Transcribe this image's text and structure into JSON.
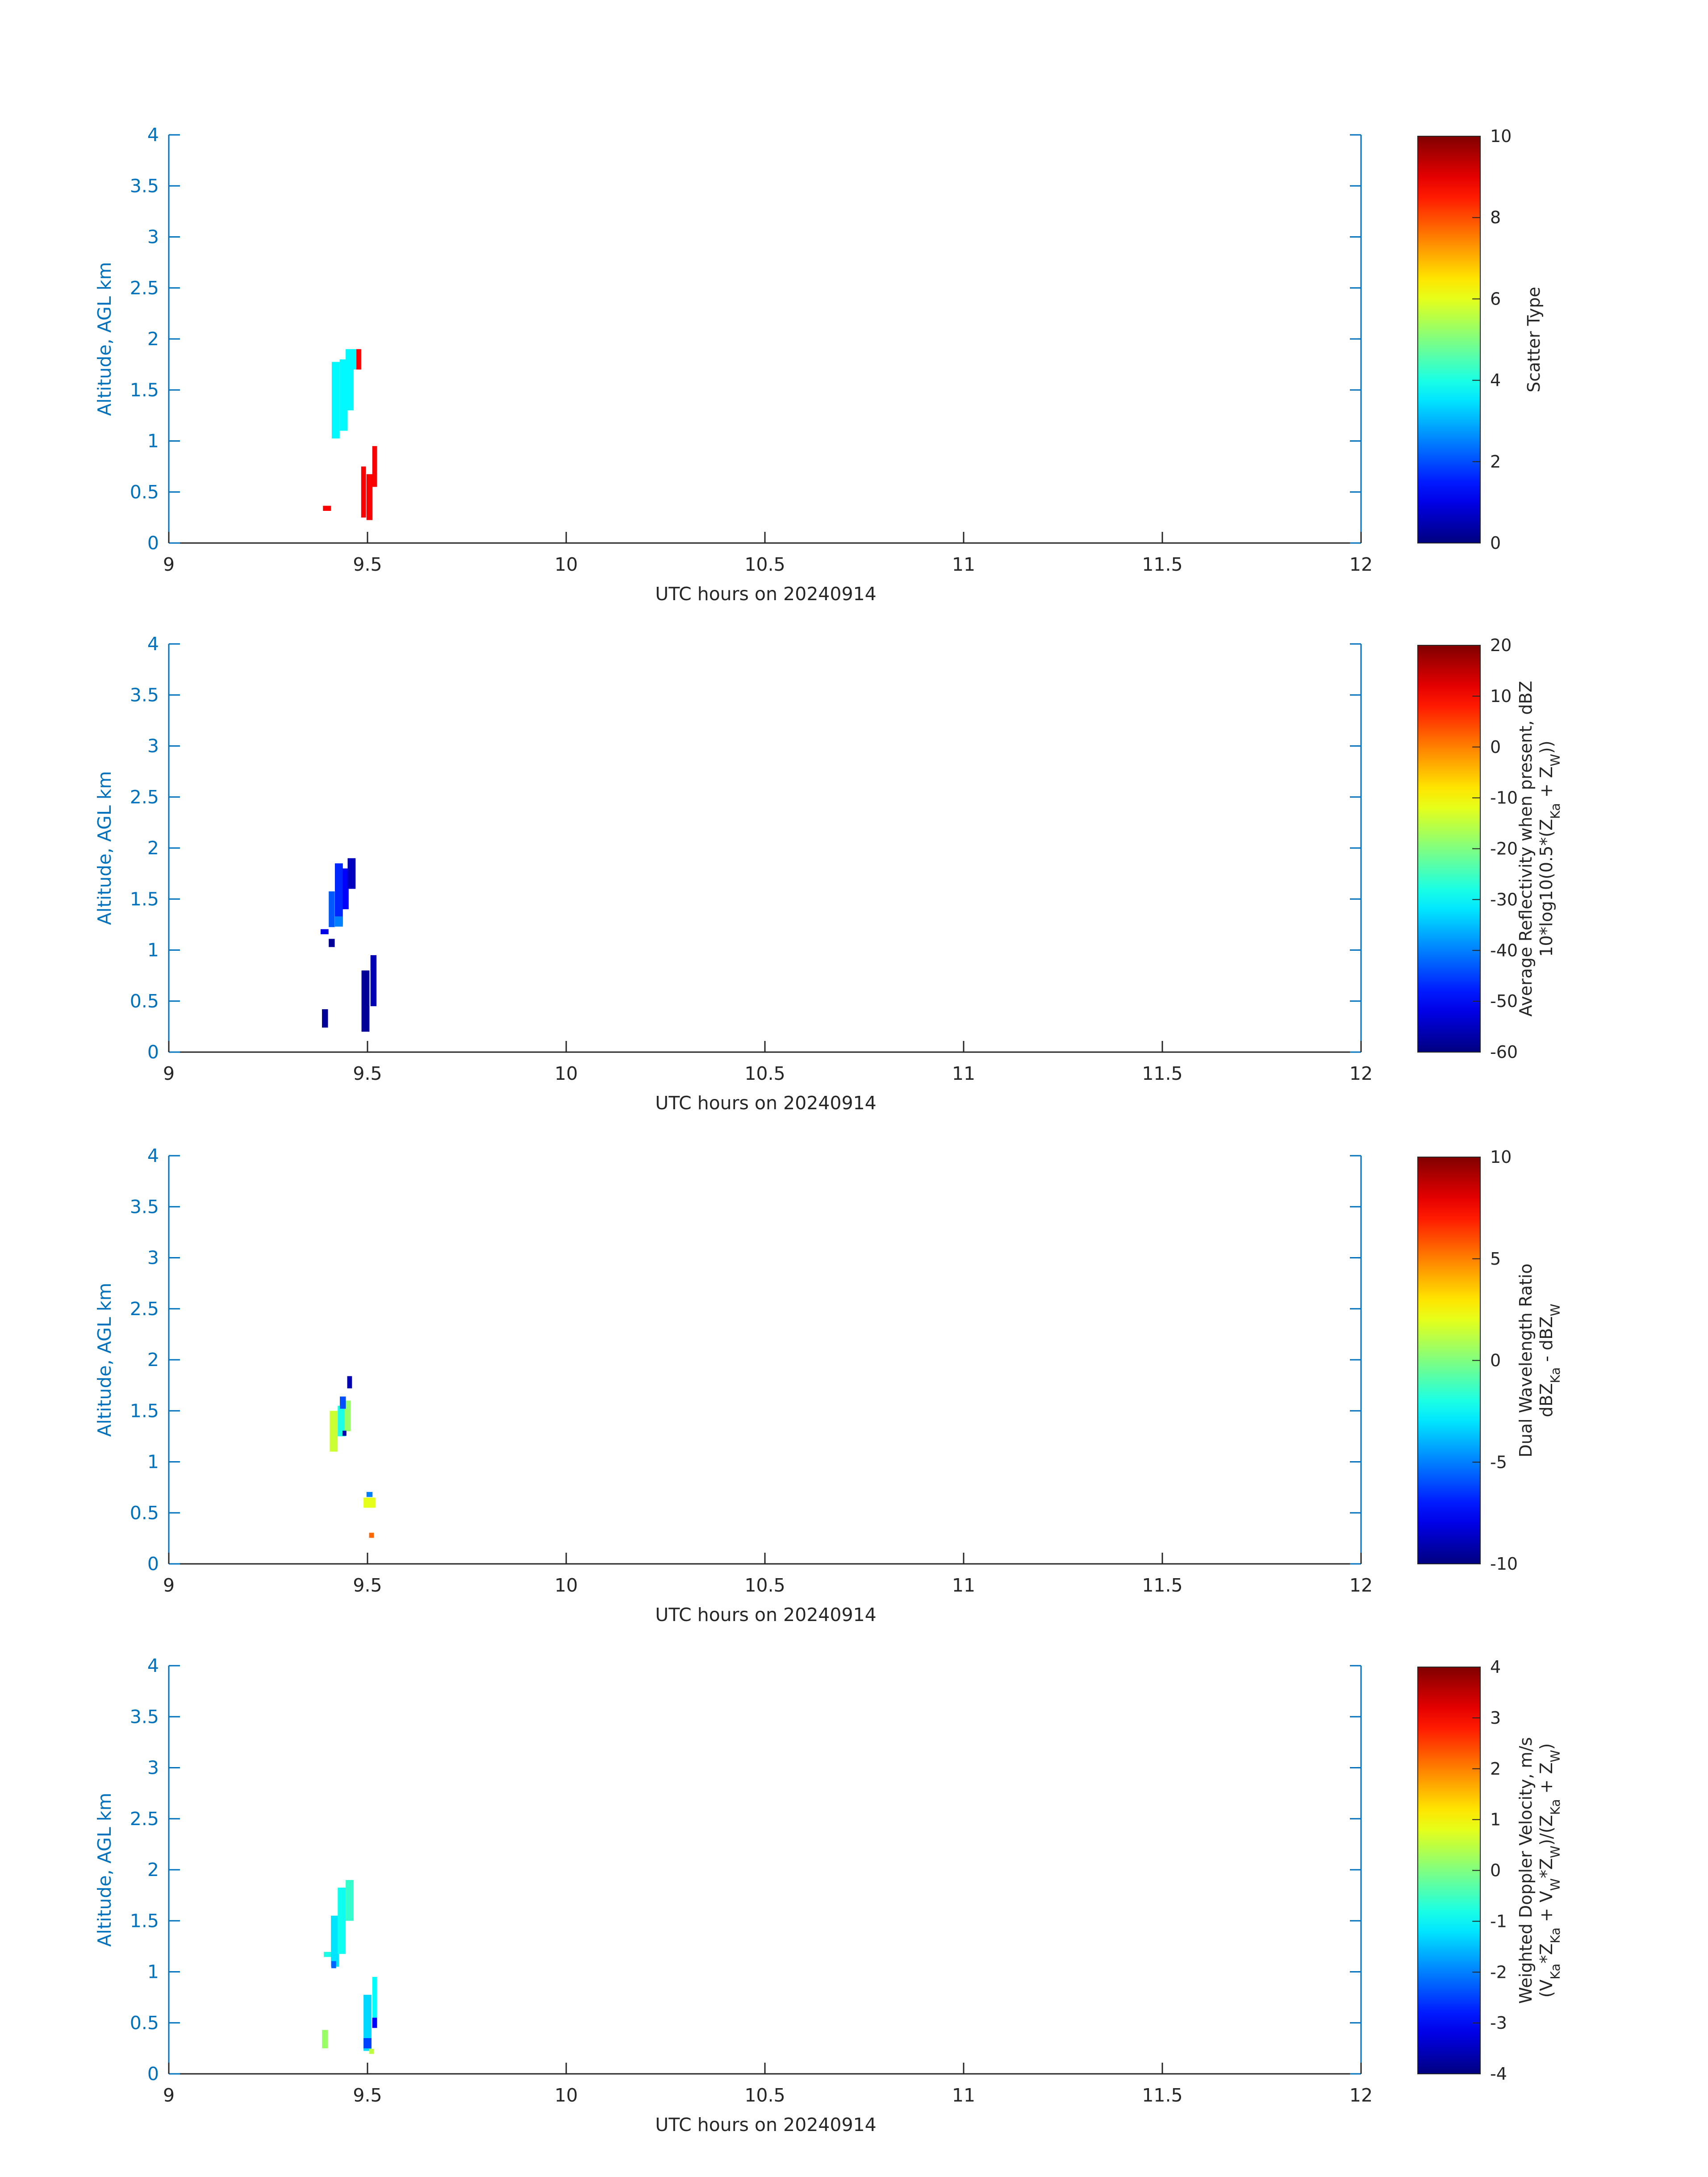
{
  "figure": {
    "x_ticks": [
      9,
      9.5,
      10,
      10.5,
      11,
      11.5,
      12
    ],
    "y_ticks": [
      0,
      0.5,
      1,
      1.5,
      2,
      2.5,
      3,
      3.5,
      4
    ],
    "colors": {
      "axis_text": "#0072BD",
      "text": "#262626",
      "axis_line": "#0072BD",
      "colormap": "jet"
    }
  },
  "chart_data": [
    {
      "type": "heatmap",
      "xlabel": "UTC hours on 20240914",
      "ylabel": "Altitude, AGL km",
      "xlim": [
        9,
        12
      ],
      "ylim": [
        0,
        4
      ],
      "colorbar": {
        "label_lines": [
          [
            "Scatter Type"
          ]
        ],
        "clim": [
          0,
          10
        ],
        "ticks": [
          0,
          2,
          4,
          6,
          8,
          10
        ]
      },
      "cells": [
        {
          "x": 9.42,
          "y": 1.4,
          "w": 0.02,
          "h": 0.75,
          "v": 3.7
        },
        {
          "x": 9.44,
          "y": 1.45,
          "w": 0.02,
          "h": 0.7,
          "v": 3.7
        },
        {
          "x": 9.455,
          "y": 1.6,
          "w": 0.02,
          "h": 0.6,
          "v": 3.7
        },
        {
          "x": 9.468,
          "y": 1.8,
          "w": 0.01,
          "h": 0.2,
          "v": 3.7
        },
        {
          "x": 9.478,
          "y": 1.8,
          "w": 0.012,
          "h": 0.2,
          "v": 8.8
        },
        {
          "x": 9.398,
          "y": 0.34,
          "w": 0.02,
          "h": 0.05,
          "v": 8.8
        },
        {
          "x": 9.49,
          "y": 0.5,
          "w": 0.012,
          "h": 0.5,
          "v": 8.8
        },
        {
          "x": 9.505,
          "y": 0.45,
          "w": 0.015,
          "h": 0.45,
          "v": 8.8
        },
        {
          "x": 9.518,
          "y": 0.75,
          "w": 0.012,
          "h": 0.4,
          "v": 8.8
        }
      ]
    },
    {
      "type": "heatmap",
      "xlabel": "UTC hours on 20240914",
      "ylabel": "Altitude, AGL km",
      "xlim": [
        9,
        12
      ],
      "ylim": [
        0,
        4
      ],
      "colorbar": {
        "label_lines": [
          [
            "Average Reflectivity when present, dBZ"
          ],
          [
            "10*log10(0.5*(Z",
            {
              "sub": "Ka"
            },
            " + Z",
            {
              "sub": "W"
            },
            "))"
          ]
        ],
        "clim": [
          -60,
          20
        ],
        "ticks": [
          -60,
          -50,
          -40,
          -30,
          -20,
          -10,
          0,
          10,
          20
        ]
      },
      "cells": [
        {
          "x": 9.392,
          "y": 1.18,
          "w": 0.02,
          "h": 0.05,
          "v": -52
        },
        {
          "x": 9.41,
          "y": 1.4,
          "w": 0.015,
          "h": 0.35,
          "v": -43
        },
        {
          "x": 9.41,
          "y": 1.07,
          "w": 0.015,
          "h": 0.08,
          "v": -58
        },
        {
          "x": 9.428,
          "y": 1.55,
          "w": 0.02,
          "h": 0.6,
          "v": -47
        },
        {
          "x": 9.428,
          "y": 1.28,
          "w": 0.02,
          "h": 0.1,
          "v": -40
        },
        {
          "x": 9.445,
          "y": 1.6,
          "w": 0.015,
          "h": 0.4,
          "v": -50
        },
        {
          "x": 9.46,
          "y": 1.75,
          "w": 0.02,
          "h": 0.3,
          "v": -55
        },
        {
          "x": 9.393,
          "y": 0.33,
          "w": 0.015,
          "h": 0.18,
          "v": -58
        },
        {
          "x": 9.495,
          "y": 0.5,
          "w": 0.02,
          "h": 0.6,
          "v": -58
        },
        {
          "x": 9.515,
          "y": 0.7,
          "w": 0.015,
          "h": 0.5,
          "v": -56
        }
      ]
    },
    {
      "type": "heatmap",
      "xlabel": "UTC hours on 20240914",
      "ylabel": "Altitude, AGL km",
      "xlim": [
        9,
        12
      ],
      "ylim": [
        0,
        4
      ],
      "colorbar": {
        "label_lines": [
          [
            "Dual Wavelength Ratio"
          ],
          [
            "dBZ",
            {
              "sub": "Ka"
            },
            " - dBZ",
            {
              "sub": "W"
            }
          ]
        ],
        "clim": [
          -10,
          10
        ],
        "ticks": [
          -10,
          -5,
          0,
          5,
          10
        ]
      },
      "cells": [
        {
          "x": 9.415,
          "y": 1.3,
          "w": 0.02,
          "h": 0.4,
          "v": 1.5
        },
        {
          "x": 9.435,
          "y": 1.4,
          "w": 0.02,
          "h": 0.3,
          "v": -2
        },
        {
          "x": 9.45,
          "y": 1.45,
          "w": 0.015,
          "h": 0.3,
          "v": 0.5
        },
        {
          "x": 9.438,
          "y": 1.58,
          "w": 0.015,
          "h": 0.12,
          "v": -6
        },
        {
          "x": 9.455,
          "y": 1.78,
          "w": 0.012,
          "h": 0.12,
          "v": -9
        },
        {
          "x": 9.442,
          "y": 1.28,
          "w": 0.01,
          "h": 0.05,
          "v": -9
        },
        {
          "x": 9.505,
          "y": 0.68,
          "w": 0.015,
          "h": 0.05,
          "v": -5
        },
        {
          "x": 9.505,
          "y": 0.6,
          "w": 0.03,
          "h": 0.1,
          "v": 2
        },
        {
          "x": 9.51,
          "y": 0.28,
          "w": 0.012,
          "h": 0.05,
          "v": 5.5
        }
      ]
    },
    {
      "type": "heatmap",
      "xlabel": "UTC hours on 20240914",
      "ylabel": "Altitude, AGL km",
      "xlim": [
        9,
        12
      ],
      "ylim": [
        0,
        4
      ],
      "colorbar": {
        "label_lines": [
          [
            "Weighted Doppler Velocity, m/s"
          ],
          [
            "(V",
            {
              "sub": "Ka"
            },
            "*Z",
            {
              "sub": "Ka"
            },
            " + V",
            {
              "sub": "W"
            },
            "*Z",
            {
              "sub": "W"
            },
            ")/(Z",
            {
              "sub": "Ka"
            },
            " + Z",
            {
              "sub": "W"
            },
            ")"
          ]
        ],
        "clim": [
          -4,
          4
        ],
        "ticks": [
          -4,
          -3,
          -2,
          -1,
          0,
          1,
          2,
          3,
          4
        ]
      },
      "cells": [
        {
          "x": 9.4,
          "y": 1.17,
          "w": 0.02,
          "h": 0.05,
          "v": -0.8
        },
        {
          "x": 9.418,
          "y": 1.3,
          "w": 0.02,
          "h": 0.5,
          "v": -1.2
        },
        {
          "x": 9.435,
          "y": 1.5,
          "w": 0.02,
          "h": 0.65,
          "v": -0.9
        },
        {
          "x": 9.455,
          "y": 1.7,
          "w": 0.02,
          "h": 0.4,
          "v": -0.6
        },
        {
          "x": 9.415,
          "y": 1.07,
          "w": 0.012,
          "h": 0.07,
          "v": -2.2
        },
        {
          "x": 9.393,
          "y": 0.34,
          "w": 0.015,
          "h": 0.18,
          "v": 0.2
        },
        {
          "x": 9.5,
          "y": 0.5,
          "w": 0.02,
          "h": 0.55,
          "v": -1.3
        },
        {
          "x": 9.518,
          "y": 0.75,
          "w": 0.012,
          "h": 0.4,
          "v": -1.0
        },
        {
          "x": 9.5,
          "y": 0.3,
          "w": 0.02,
          "h": 0.1,
          "v": -2.5
        },
        {
          "x": 9.518,
          "y": 0.5,
          "w": 0.012,
          "h": 0.1,
          "v": -3.0
        },
        {
          "x": 9.51,
          "y": 0.22,
          "w": 0.012,
          "h": 0.05,
          "v": 0.5
        }
      ]
    }
  ]
}
